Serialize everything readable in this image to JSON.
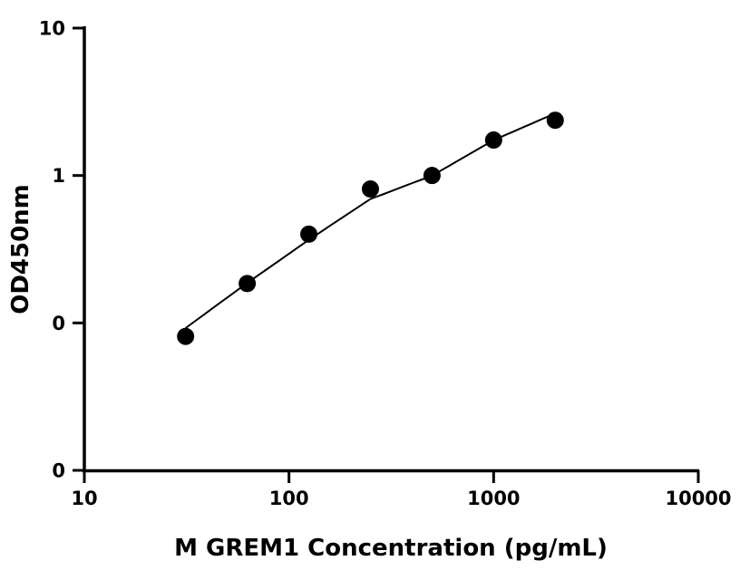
{
  "chart_data": {
    "type": "scatter",
    "xlabel": "M GREM1 Concentration (pg/mL)",
    "ylabel": "OD450nm",
    "x_scale": "log",
    "y_scale": "log",
    "xlim": [
      10,
      10000
    ],
    "ylim": [
      0.01,
      10
    ],
    "x_ticks": [
      10,
      100,
      1000,
      10000
    ],
    "x_tick_labels": [
      "10",
      "100",
      "1000",
      "10000"
    ],
    "y_ticks": [
      0.01,
      0.1,
      1,
      10
    ],
    "y_tick_labels": [
      "0",
      "0",
      "1",
      "10"
    ],
    "grid": false,
    "legend": "none",
    "series": [
      {
        "x": [
          31.25,
          62.5,
          125,
          250,
          500,
          1000,
          2000
        ],
        "y": [
          0.081,
          0.185,
          0.4,
          0.81,
          1.0,
          1.74,
          2.37
        ],
        "marker": "filled-circle",
        "color": "#000000",
        "fit_curve": true
      }
    ]
  }
}
